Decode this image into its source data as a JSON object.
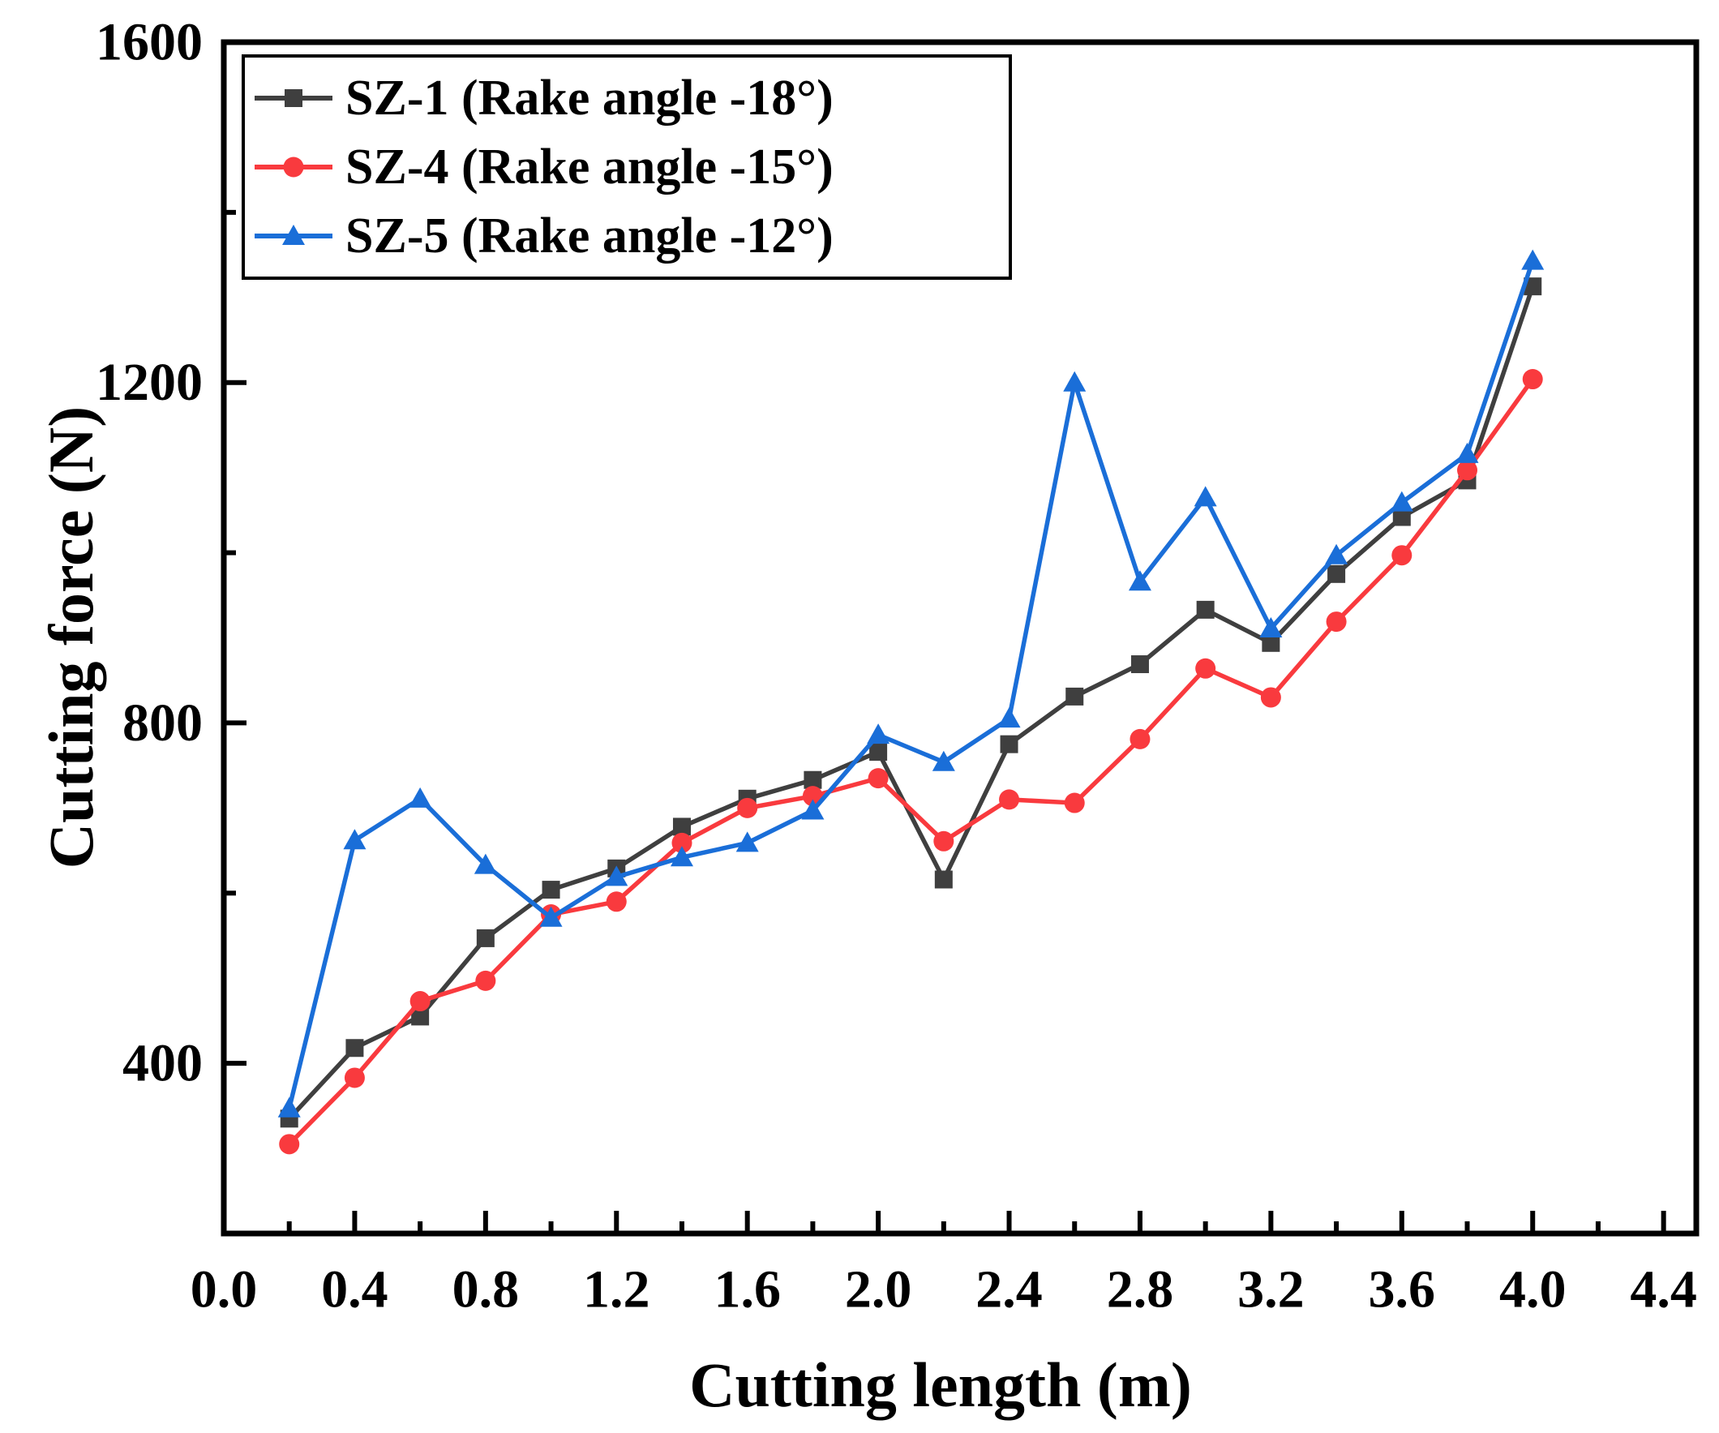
{
  "chart_data": {
    "type": "line",
    "title": "",
    "xlabel": "Cutting length (m)",
    "ylabel": "Cutting force (N)",
    "xlim": [
      0,
      4.5
    ],
    "ylim": [
      200,
      1600
    ],
    "grid": false,
    "legend_position": "top-left",
    "x_tick_labels": [
      "0.0",
      "0.4",
      "0.8",
      "1.2",
      "1.6",
      "2.0",
      "2.4",
      "2.8",
      "3.2",
      "3.6",
      "4.0",
      "4.4"
    ],
    "x_minor_ticks": [
      0.2,
      0.6,
      1.0,
      1.4,
      1.8,
      2.2,
      2.6,
      3.0,
      3.4,
      3.8,
      4.2
    ],
    "y_tick_labels": [
      "400",
      "800",
      "1200",
      "1600"
    ],
    "y_minor_ticks": [
      600,
      1000,
      1400
    ],
    "x": [
      0.2,
      0.4,
      0.6,
      0.8,
      1.0,
      1.2,
      1.4,
      1.6,
      1.8,
      2.0,
      2.2,
      2.4,
      2.6,
      2.8,
      3.0,
      3.2,
      3.4,
      3.6,
      3.8,
      4.0
    ],
    "series": [
      {
        "name": "SZ-1",
        "label": "SZ-1 (Rake angle -18°)",
        "marker": "square",
        "color": "#3f3f3f",
        "values": [
          335,
          418,
          455,
          547,
          604,
          629,
          678,
          711,
          733,
          766,
          616,
          775,
          831,
          869,
          933,
          894,
          975,
          1042,
          1085,
          1313
        ]
      },
      {
        "name": "SZ-4",
        "label": "SZ-4 (Rake angle -15°)",
        "marker": "circle",
        "color": "#f93a3e",
        "values": [
          305,
          383,
          473,
          497,
          575,
          590,
          659,
          700,
          714,
          735,
          661,
          710,
          706,
          781,
          864,
          830,
          919,
          997,
          1097,
          1204
        ]
      },
      {
        "name": "SZ-5",
        "label": "SZ-5 (Rake angle -12°)",
        "marker": "triangle",
        "color": "#1a6ed8",
        "values": [
          347,
          662,
          711,
          633,
          571,
          619,
          642,
          659,
          697,
          786,
          754,
          805,
          1200,
          966,
          1065,
          911,
          997,
          1059,
          1116,
          1343
        ]
      }
    ]
  }
}
